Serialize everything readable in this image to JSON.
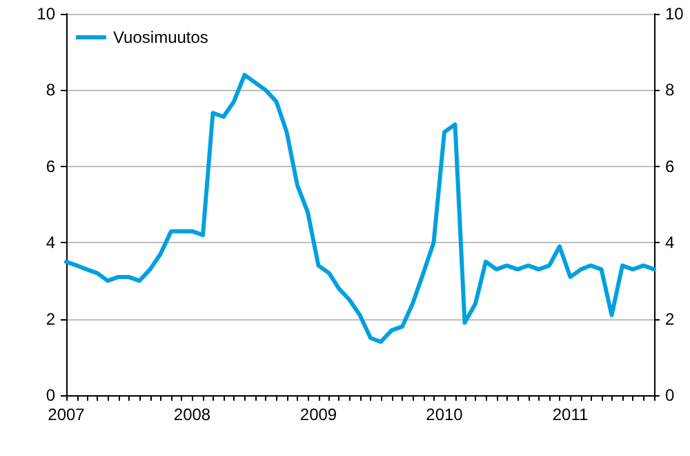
{
  "chart_data": {
    "type": "line",
    "x": [
      "2007-01",
      "2007-02",
      "2007-03",
      "2007-04",
      "2007-05",
      "2007-06",
      "2007-07",
      "2007-08",
      "2007-09",
      "2007-10",
      "2007-11",
      "2007-12",
      "2008-01",
      "2008-02",
      "2008-03",
      "2008-04",
      "2008-05",
      "2008-06",
      "2008-07",
      "2008-08",
      "2008-09",
      "2008-10",
      "2008-11",
      "2008-12",
      "2009-01",
      "2009-02",
      "2009-03",
      "2009-04",
      "2009-05",
      "2009-06",
      "2009-07",
      "2009-08",
      "2009-09",
      "2009-10",
      "2009-11",
      "2009-12",
      "2010-01",
      "2010-02",
      "2010-03",
      "2010-04",
      "2010-05",
      "2010-06",
      "2010-07",
      "2010-08",
      "2010-09",
      "2010-10",
      "2010-11",
      "2010-12",
      "2011-01",
      "2011-02",
      "2011-03",
      "2011-04",
      "2011-05",
      "2011-06",
      "2011-07",
      "2011-08",
      "2011-09"
    ],
    "series": [
      {
        "name": "Vuosimuutos",
        "color": "#00a0e0",
        "values": [
          3.5,
          3.4,
          3.3,
          3.2,
          3.0,
          3.1,
          3.1,
          3.0,
          3.3,
          3.7,
          4.3,
          4.3,
          4.3,
          4.2,
          7.4,
          7.3,
          7.7,
          8.4,
          8.2,
          8.0,
          7.7,
          6.9,
          5.5,
          4.8,
          3.4,
          3.2,
          2.8,
          2.5,
          2.1,
          1.5,
          1.4,
          1.7,
          1.8,
          2.4,
          3.2,
          4.0,
          6.9,
          7.1,
          1.9,
          2.4,
          3.5,
          3.3,
          3.4,
          3.3,
          3.4,
          3.3,
          3.4,
          3.9,
          3.1,
          3.3,
          3.4,
          3.3,
          2.1,
          3.4,
          3.3,
          3.4,
          3.3
        ]
      }
    ],
    "xlim": [
      "2007-01",
      "2011-09"
    ],
    "xticks": [
      {
        "value": "2007-01",
        "label": "2007"
      },
      {
        "value": "2008-01",
        "label": "2008"
      },
      {
        "value": "2009-01",
        "label": "2009"
      },
      {
        "value": "2010-01",
        "label": "2010"
      },
      {
        "value": "2011-01",
        "label": "2011"
      }
    ],
    "ylim": [
      0,
      10
    ],
    "yticks": [
      0,
      2,
      4,
      6,
      8,
      10
    ],
    "y2lim": [
      0,
      10
    ],
    "y2ticks": [
      0,
      2,
      4,
      6,
      8,
      10
    ],
    "grid": "y",
    "legend": "top left",
    "marker": "none",
    "line_style": "solid"
  }
}
